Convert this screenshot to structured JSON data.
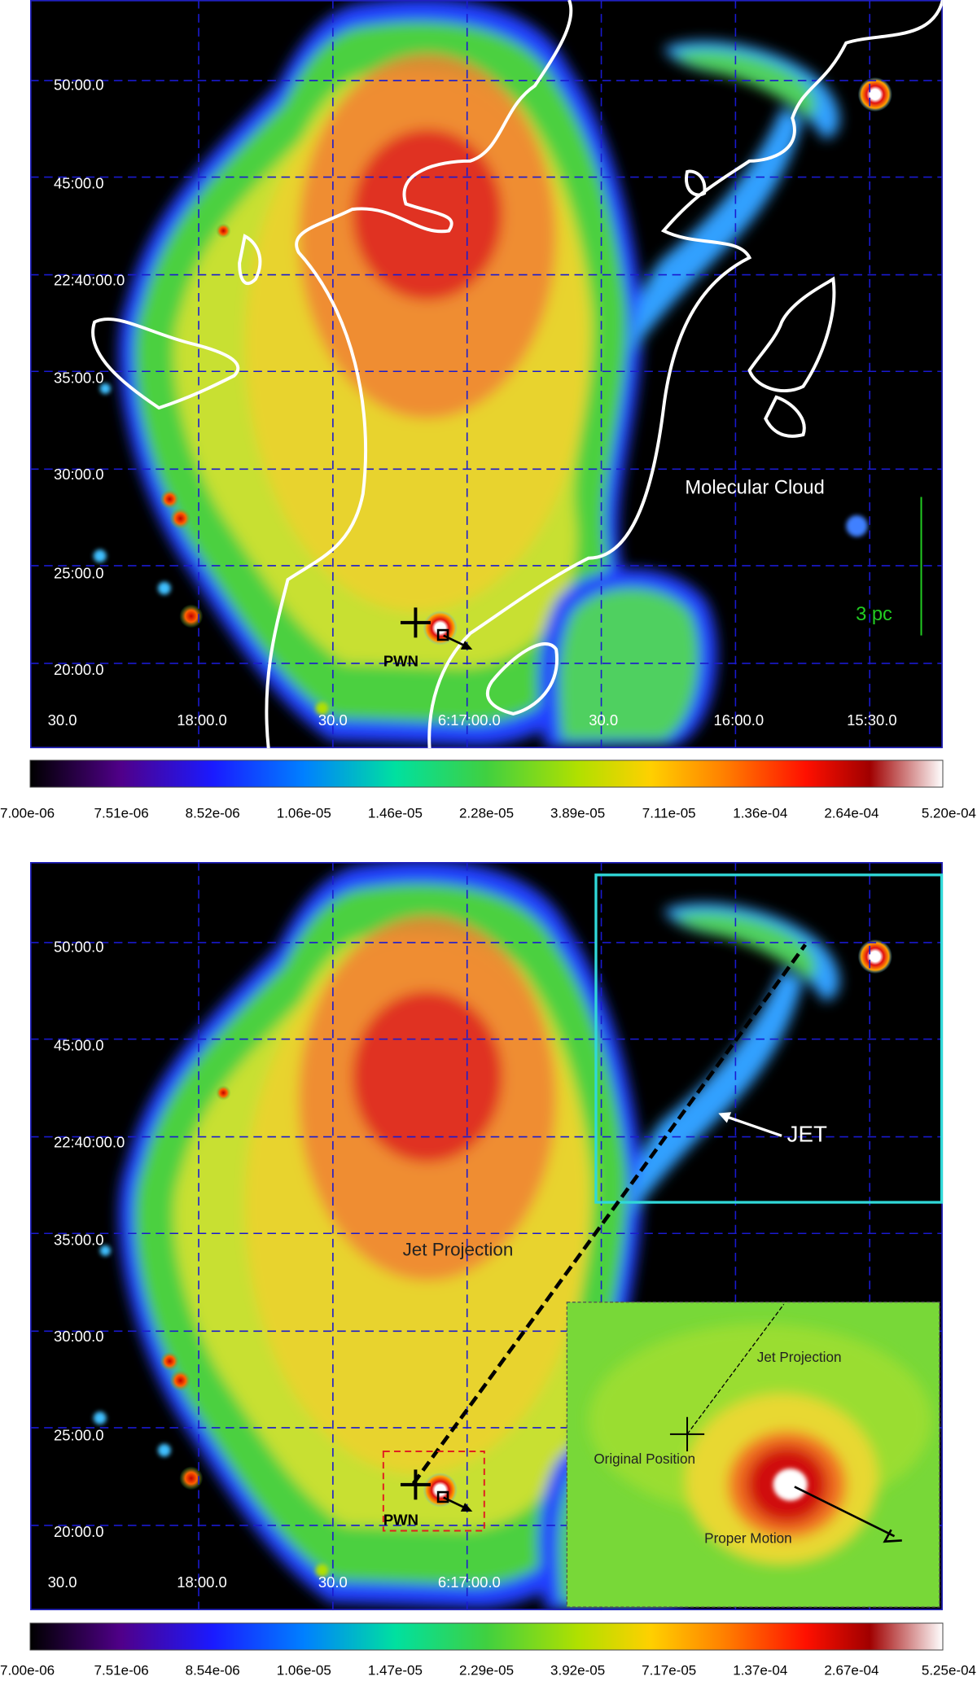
{
  "panels": [
    {
      "y_labels": [
        "50:00.0",
        "45:00.0",
        "22:40:00.0",
        "35:00.0",
        "30:00.0",
        "25:00.0",
        "20:00.0"
      ],
      "x_labels": [
        "30.0",
        "18:00.0",
        "30.0",
        "6:17:00.0",
        "30.0",
        "16:00.0",
        "15:30.0"
      ],
      "annotations": {
        "molecular_cloud": "Molecular Cloud",
        "scale_bar": "3 pc",
        "pwn": "PWN"
      },
      "colorbar_labels": [
        "7.00e-06",
        "7.51e-06",
        "8.52e-06",
        "1.06e-05",
        "1.46e-05",
        "2.28e-05",
        "3.89e-05",
        "7.11e-05",
        "1.36e-04",
        "2.64e-04",
        "5.20e-04"
      ]
    },
    {
      "y_labels": [
        "50:00.0",
        "45:00.0",
        "22:40:00.0",
        "35:00.0",
        "30:00.0",
        "25:00.0",
        "20:00.0"
      ],
      "x_labels": [
        "30.0",
        "18:00.0",
        "30.0",
        "6:17:00.0"
      ],
      "annotations": {
        "jet": "JET",
        "jet_projection": "Jet Projection",
        "pwn": "PWN",
        "inset_jet_projection": "Jet Projection",
        "inset_original_position": "Original Position",
        "inset_proper_motion": "Proper Motion"
      },
      "colorbar_labels": [
        "7.00e-06",
        "7.51e-06",
        "8.54e-06",
        "1.06e-05",
        "1.47e-05",
        "2.29e-05",
        "3.92e-05",
        "7.17e-05",
        "1.37e-04",
        "2.67e-04",
        "5.25e-04"
      ]
    }
  ]
}
